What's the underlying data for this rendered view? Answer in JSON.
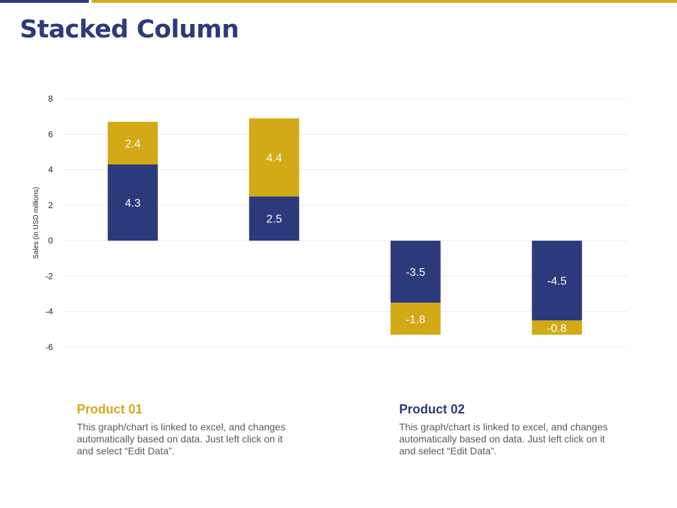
{
  "colors": {
    "navy": "#2b3a7a",
    "gold": "#d1aa16",
    "text_dark": "#222222",
    "grid": "#ececec"
  },
  "page": {
    "title": "Stacked Column"
  },
  "chart_data": {
    "type": "bar",
    "stacked": true,
    "categories": [
      "",
      "",
      "",
      ""
    ],
    "series": [
      {
        "color": "navy",
        "values": [
          4.3,
          2.5,
          -3.5,
          -4.5
        ]
      },
      {
        "color": "gold",
        "values": [
          2.4,
          4.4,
          -1.8,
          -0.8
        ]
      }
    ],
    "ylabel": "Sales (in USD millions)",
    "ylim": [
      -6,
      8
    ],
    "yticks": [
      8,
      6,
      4,
      2,
      0,
      -2,
      -4,
      -6
    ],
    "grid": true,
    "legend": "none"
  },
  "descriptions": [
    {
      "heading": "Product 01",
      "text": "This graph/chart is linked to excel, and changes automatically based on data. Just left click on it and select “Edit Data”.",
      "color": "gold"
    },
    {
      "heading": "Product 02",
      "text": "This graph/chart is linked to excel, and changes automatically based on data. Just left click on it and select “Edit Data”.",
      "color": "navy"
    }
  ]
}
